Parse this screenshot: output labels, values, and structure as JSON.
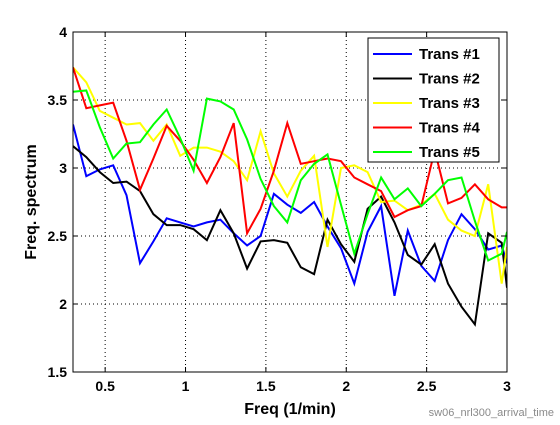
{
  "chart_data": {
    "type": "line",
    "title": "",
    "xlabel": "Freq (1/min)",
    "ylabel": "Freq. spectrum",
    "xlim": [
      0.3,
      3
    ],
    "ylim": [
      1.5,
      4
    ],
    "xticks": [
      0.5,
      1,
      1.5,
      2,
      2.5,
      3
    ],
    "xtick_labels": [
      "0.5",
      "1",
      "1.5",
      "2",
      "2.5",
      "3"
    ],
    "yticks": [
      1.5,
      2,
      2.5,
      3,
      3.5,
      4
    ],
    "ytick_labels": [
      "1.5",
      "2",
      "2.5",
      "3",
      "3.5",
      "4"
    ],
    "grid": true,
    "legend_position": "top-right",
    "x": [
      0.3,
      0.383,
      0.467,
      0.55,
      0.633,
      0.717,
      0.8,
      0.883,
      0.967,
      1.05,
      1.133,
      1.217,
      1.3,
      1.383,
      1.467,
      1.55,
      1.633,
      1.717,
      1.8,
      1.883,
      1.967,
      2.05,
      2.133,
      2.217,
      2.3,
      2.383,
      2.467,
      2.55,
      2.633,
      2.717,
      2.8,
      2.883,
      2.967,
      3.0
    ],
    "series": [
      {
        "name": "Trans #1",
        "color": "#0000ff",
        "values": [
          3.32,
          2.94,
          2.99,
          3.02,
          2.8,
          2.3,
          2.46,
          2.63,
          2.6,
          2.57,
          2.6,
          2.62,
          2.52,
          2.43,
          2.5,
          2.81,
          2.73,
          2.67,
          2.75,
          2.57,
          2.41,
          2.15,
          2.53,
          2.72,
          2.06,
          2.54,
          2.28,
          2.17,
          2.47,
          2.66,
          2.55,
          2.4,
          2.43,
          2.3
        ]
      },
      {
        "name": "Trans #2",
        "color": "#000000",
        "values": [
          3.16,
          3.08,
          2.97,
          2.89,
          2.9,
          2.83,
          2.66,
          2.58,
          2.58,
          2.55,
          2.47,
          2.69,
          2.52,
          2.26,
          2.46,
          2.47,
          2.45,
          2.27,
          2.22,
          2.62,
          2.44,
          2.31,
          2.7,
          2.79,
          2.6,
          2.36,
          2.29,
          2.44,
          2.15,
          1.98,
          1.85,
          2.52,
          2.45,
          2.12
        ]
      },
      {
        "name": "Trans #3",
        "color": "#ffff00",
        "values": [
          3.74,
          3.63,
          3.42,
          3.37,
          3.32,
          3.33,
          3.2,
          3.32,
          3.09,
          3.15,
          3.15,
          3.12,
          3.05,
          2.91,
          3.27,
          2.96,
          2.79,
          2.98,
          3.09,
          2.42,
          3.0,
          3.02,
          2.97,
          2.75,
          2.76,
          2.69,
          2.73,
          2.81,
          2.62,
          2.54,
          2.5,
          2.88,
          2.15,
          2.42
        ]
      },
      {
        "name": "Trans #4",
        "color": "#ff0000",
        "values": [
          3.74,
          3.44,
          3.46,
          3.48,
          3.2,
          2.84,
          3.07,
          3.31,
          3.2,
          3.06,
          2.89,
          3.08,
          3.33,
          2.52,
          2.7,
          2.98,
          3.33,
          3.03,
          3.05,
          3.07,
          3.05,
          2.93,
          2.88,
          2.83,
          2.64,
          2.69,
          2.72,
          3.13,
          2.74,
          2.78,
          2.88,
          2.77,
          2.71,
          2.71
        ]
      },
      {
        "name": "Trans #5",
        "color": "#00ff00",
        "values": [
          3.56,
          3.57,
          3.3,
          3.07,
          3.18,
          3.19,
          3.32,
          3.43,
          3.22,
          2.98,
          3.51,
          3.49,
          3.43,
          3.21,
          2.92,
          2.72,
          2.6,
          2.91,
          3.03,
          3.1,
          2.73,
          2.37,
          2.66,
          2.93,
          2.77,
          2.85,
          2.72,
          2.81,
          2.91,
          2.93,
          2.61,
          2.32,
          2.37,
          2.53
        ]
      }
    ]
  },
  "footer": {
    "caption": "sw06_nrl300_arrival_time"
  }
}
